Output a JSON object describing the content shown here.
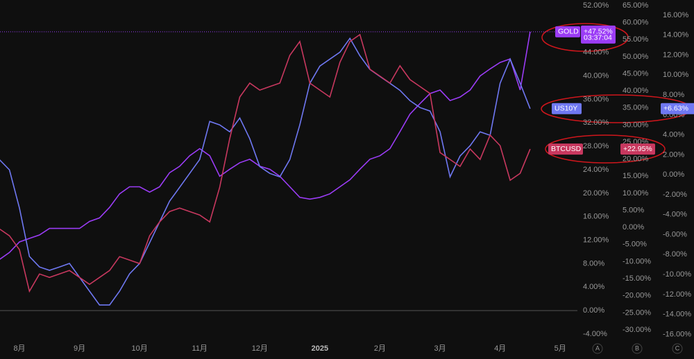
{
  "chart_data": {
    "type": "line",
    "categories": [
      null,
      null,
      "8月",
      null,
      null,
      null,
      null,
      null,
      "9月",
      null,
      null,
      null,
      null,
      null,
      "10月",
      null,
      null,
      null,
      null,
      null,
      "11月",
      null,
      null,
      null,
      null,
      null,
      "12月",
      null,
      null,
      null,
      null,
      null,
      "2025",
      null,
      null,
      null,
      null,
      null,
      "2月",
      null,
      null,
      null,
      null,
      null,
      "3月",
      null,
      null,
      null,
      null,
      null,
      "4月",
      null,
      null,
      null,
      null,
      null,
      "5月"
    ],
    "axes": [
      {
        "name": "A",
        "ylim": [
          -4,
          52
        ],
        "yticks": [
          {
            "value": 52,
            "label": "52.00%"
          },
          {
            "value": 48,
            "label": "48.00%"
          },
          {
            "value": 44,
            "label": "44.00%"
          },
          {
            "value": 40,
            "label": "40.00%"
          },
          {
            "value": 36,
            "label": "36.00%"
          },
          {
            "value": 32,
            "label": "32.00%"
          },
          {
            "value": 28,
            "label": "28.00%"
          },
          {
            "value": 24,
            "label": "24.00%"
          },
          {
            "value": 20,
            "label": "20.00%"
          },
          {
            "value": 16,
            "label": "16.00%"
          },
          {
            "value": 12,
            "label": "12.00%"
          },
          {
            "value": 8,
            "label": "8.00%"
          },
          {
            "value": 4,
            "label": "4.00%"
          },
          {
            "value": 0,
            "label": "0.00%"
          },
          {
            "value": -4,
            "label": "-4.00%"
          }
        ]
      },
      {
        "name": "B",
        "ylim": [
          -31.22,
          65
        ],
        "yticks": [
          {
            "value": 65,
            "label": "65.00%"
          },
          {
            "value": 60,
            "label": "60.00%"
          },
          {
            "value": 55,
            "label": "55.00%"
          },
          {
            "value": 50,
            "label": "50.00%"
          },
          {
            "value": 45,
            "label": "45.00%"
          },
          {
            "value": 40,
            "label": "40.00%"
          },
          {
            "value": 35,
            "label": "35.00%"
          },
          {
            "value": 30,
            "label": "30.00%"
          },
          {
            "value": 25,
            "label": "25.00%"
          },
          {
            "value": 20,
            "label": "20.00%"
          },
          {
            "value": 15,
            "label": "15.00%"
          },
          {
            "value": 10,
            "label": "10.00%"
          },
          {
            "value": 5,
            "label": "5.00%"
          },
          {
            "value": 0,
            "label": "0.00%"
          },
          {
            "value": -5,
            "label": "-5.00%"
          },
          {
            "value": -10,
            "label": "-10.00%"
          },
          {
            "value": -15,
            "label": "-15.00%"
          },
          {
            "value": -20,
            "label": "-20.00%"
          },
          {
            "value": -25,
            "label": "-25.00%"
          },
          {
            "value": -30,
            "label": "-30.00%"
          }
        ]
      },
      {
        "name": "C",
        "ylim": [
          -15.97,
          16.97
        ],
        "yticks": [
          {
            "value": 16,
            "label": "16.00%"
          },
          {
            "value": 14,
            "label": "14.00%"
          },
          {
            "value": 12,
            "label": "12.00%"
          },
          {
            "value": 10,
            "label": "10.00%"
          },
          {
            "value": 8,
            "label": "8.00%"
          },
          {
            "value": 6,
            "label": "6.00%"
          },
          {
            "value": 4,
            "label": "4.00%"
          },
          {
            "value": 2,
            "label": "2.00%"
          },
          {
            "value": 0,
            "label": "0.00%"
          },
          {
            "value": -2,
            "label": "-2.00%"
          },
          {
            "value": -4,
            "label": "-4.00%"
          },
          {
            "value": -6,
            "label": "-6.00%"
          },
          {
            "value": -8,
            "label": "-8.00%"
          },
          {
            "value": -10,
            "label": "-10.00%"
          },
          {
            "value": -12,
            "label": "-12.00%"
          },
          {
            "value": -14,
            "label": "-14.00%"
          },
          {
            "value": -16,
            "label": "-16.00%"
          }
        ]
      }
    ],
    "series": [
      {
        "name": "GOLD",
        "color": "#9b3cf6",
        "axis": "A",
        "countdown": "03:37:04",
        "values": [
          8.7,
          9.9,
          11.7,
          12.3,
          12.9,
          14.0,
          14.0,
          14.0,
          14.0,
          15.2,
          15.8,
          17.6,
          19.9,
          21.1,
          21.1,
          20.2,
          21.1,
          23.5,
          24.6,
          26.4,
          27.6,
          26.4,
          22.9,
          24.1,
          25.2,
          25.8,
          24.6,
          24.1,
          22.9,
          21.1,
          19.3,
          19.0,
          19.3,
          19.9,
          21.1,
          22.3,
          24.1,
          25.8,
          26.4,
          27.6,
          30.5,
          33.5,
          35.3,
          37.0,
          37.6,
          35.8,
          36.4,
          37.6,
          40.0,
          41.2,
          42.3,
          42.9,
          37.6,
          47.52,
          null,
          null,
          null
        ],
        "value_labels": [
          null,
          null,
          null,
          null,
          null,
          null,
          null,
          null,
          null,
          null,
          null,
          null,
          null,
          null,
          null,
          null,
          null,
          null,
          null,
          null,
          null,
          null,
          null,
          null,
          null,
          null,
          null,
          null,
          null,
          null,
          null,
          null,
          null,
          null,
          null,
          null,
          null,
          null,
          null,
          null,
          null,
          null,
          null,
          null,
          null,
          null,
          null,
          null,
          null,
          null,
          null,
          null,
          null,
          "+47.52%",
          null,
          null,
          null
        ]
      },
      {
        "name": "US10Y",
        "color": "#6f78f2",
        "axis": "C",
        "values": [
          1.53,
          0.49,
          -3.33,
          -8.19,
          -9.24,
          -9.58,
          -9.24,
          -8.89,
          -10.28,
          -11.67,
          -13.06,
          -13.06,
          -11.67,
          -9.93,
          -8.89,
          -6.81,
          -4.72,
          -2.64,
          -1.25,
          0.14,
          1.53,
          5.35,
          5.0,
          4.31,
          5.69,
          3.61,
          0.83,
          0.14,
          -0.21,
          1.53,
          5.0,
          9.17,
          10.9,
          11.6,
          12.29,
          13.68,
          11.94,
          10.56,
          9.86,
          9.17,
          8.47,
          7.43,
          6.74,
          6.39,
          4.31,
          -0.21,
          1.88,
          2.92,
          4.31,
          3.96,
          9.17,
          11.6,
          9.17,
          6.63,
          null,
          null,
          null
        ],
        "value_labels": [
          null,
          null,
          null,
          null,
          null,
          null,
          null,
          null,
          null,
          null,
          null,
          null,
          null,
          null,
          null,
          null,
          null,
          null,
          null,
          null,
          null,
          null,
          null,
          null,
          null,
          null,
          null,
          null,
          null,
          null,
          null,
          null,
          null,
          null,
          null,
          null,
          null,
          null,
          null,
          null,
          null,
          null,
          null,
          null,
          null,
          null,
          null,
          null,
          null,
          null,
          null,
          null,
          null,
          "+6.63%",
          null,
          null,
          null
        ]
      },
      {
        "name": "BTCUSD",
        "color": "#c8385f",
        "axis": "B",
        "values": [
          -0.41,
          -2.44,
          -6.5,
          -18.7,
          -13.62,
          -14.63,
          -13.62,
          -12.6,
          -14.63,
          -16.67,
          -14.63,
          -12.6,
          -8.54,
          -9.55,
          -10.57,
          -2.44,
          1.63,
          4.67,
          5.69,
          4.67,
          3.66,
          1.63,
          11.79,
          26.02,
          38.21,
          42.28,
          40.24,
          41.26,
          42.28,
          50.41,
          54.47,
          42.28,
          40.24,
          38.21,
          48.37,
          54.47,
          56.5,
          46.34,
          44.31,
          42.28,
          47.36,
          43.29,
          41.26,
          39.23,
          21.95,
          19.92,
          17.89,
          22.97,
          19.92,
          27.03,
          23.98,
          13.82,
          15.85,
          22.95,
          null,
          null,
          null
        ],
        "value_labels": [
          null,
          null,
          null,
          null,
          null,
          null,
          null,
          null,
          null,
          null,
          null,
          null,
          null,
          null,
          null,
          null,
          null,
          null,
          null,
          null,
          null,
          null,
          null,
          null,
          null,
          null,
          null,
          null,
          null,
          null,
          null,
          null,
          null,
          null,
          null,
          null,
          null,
          null,
          null,
          null,
          null,
          null,
          null,
          null,
          null,
          null,
          null,
          null,
          null,
          null,
          null,
          null,
          null,
          "+22.95%",
          null,
          null,
          null
        ]
      }
    ]
  }
}
